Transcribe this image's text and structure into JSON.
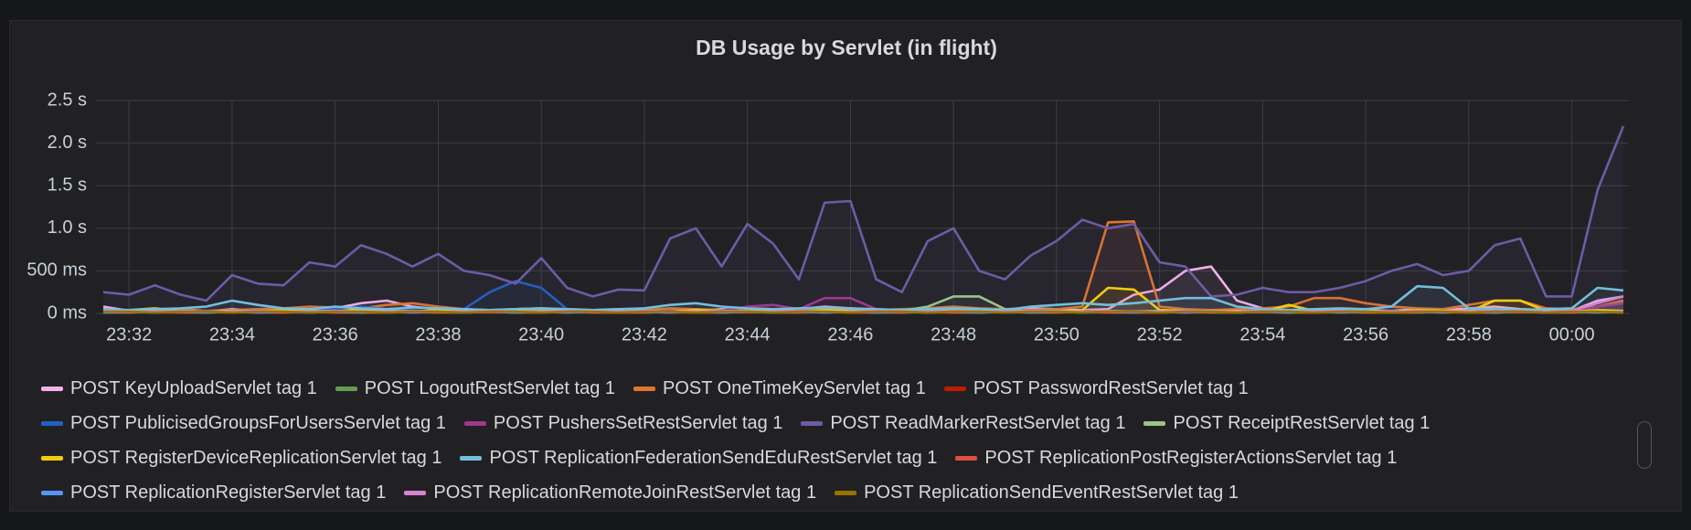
{
  "chart_data": {
    "type": "line",
    "title": "DB Usage by Servlet (in flight)",
    "categories": [
      null,
      "23:32",
      null,
      null,
      null,
      "23:34",
      null,
      null,
      null,
      "23:36",
      null,
      null,
      null,
      "23:38",
      null,
      null,
      null,
      "23:40",
      null,
      null,
      null,
      "23:42",
      null,
      null,
      null,
      "23:44",
      null,
      null,
      null,
      "23:46",
      null,
      null,
      null,
      "23:48",
      null,
      null,
      null,
      "23:50",
      null,
      null,
      null,
      "23:52",
      null,
      null,
      null,
      "23:54",
      null,
      null,
      null,
      "23:56",
      null,
      null,
      null,
      "23:58",
      null,
      null,
      null,
      "00:00",
      null,
      null
    ],
    "ylim": [
      0,
      2.5
    ],
    "yticks": [
      {
        "value": 0,
        "label": "0 ms"
      },
      {
        "value": 0.5,
        "label": "500 ms"
      },
      {
        "value": 1,
        "label": "1.0 s"
      },
      {
        "value": 1.5,
        "label": "1.5 s"
      },
      {
        "value": 2,
        "label": "2.0 s"
      },
      {
        "value": 2.5,
        "label": "2.5 s"
      }
    ],
    "grid": true,
    "legend": "bottom",
    "series": [
      {
        "name": "POST KeyUploadServlet tag 1",
        "color": "#f4b2e8",
        "values": [
          0.08,
          0.03,
          0.02,
          0.03,
          0.02,
          0.05,
          0.03,
          0.02,
          0.04,
          0.06,
          0.12,
          0.15,
          0.08,
          0.05,
          0.04,
          0.03,
          0.05,
          0.06,
          0.04,
          0.03,
          0.02,
          0.03,
          0.04,
          0.03,
          0.05,
          0.04,
          0.03,
          0.05,
          0.08,
          0.06,
          0.04,
          0.03,
          0.05,
          0.04,
          0.03,
          0.05,
          0.06,
          0.05,
          0.04,
          0.05,
          0.22,
          0.28,
          0.5,
          0.55,
          0.15,
          0.06,
          0.04,
          0.03,
          0.05,
          0.04,
          0.03,
          0.05,
          0.04,
          0.06,
          0.08,
          0.05,
          0.04,
          0.03,
          0.15,
          0.2
        ]
      },
      {
        "name": "POST LogoutRestServlet tag 1",
        "color": "#629e51",
        "values": [
          0.02,
          0.01,
          0.02,
          0.03,
          0.01,
          0.02,
          0.02,
          0.01,
          0.03,
          0.02,
          0.02,
          0.01,
          0.02,
          0.03,
          0.01,
          0.02,
          0.02,
          0.01,
          0.03,
          0.02,
          0.02,
          0.01,
          0.02,
          0.03,
          0.01,
          0.02,
          0.02,
          0.01,
          0.03,
          0.02,
          0.02,
          0.01,
          0.02,
          0.03,
          0.01,
          0.02,
          0.02,
          0.01,
          0.03,
          0.02,
          0.02,
          0.01,
          0.02,
          0.03,
          0.01,
          0.02,
          0.02,
          0.01,
          0.03,
          0.02,
          0.02,
          0.01,
          0.02,
          0.03,
          0.01,
          0.02,
          0.02,
          0.01,
          0.03,
          0.02
        ]
      },
      {
        "name": "POST OneTimeKeyServlet tag 1",
        "color": "#e0752d",
        "values": [
          0.05,
          0.03,
          0.04,
          0.05,
          0.03,
          0.04,
          0.05,
          0.06,
          0.08,
          0.07,
          0.06,
          0.1,
          0.12,
          0.08,
          0.05,
          0.04,
          0.05,
          0.06,
          0.05,
          0.04,
          0.05,
          0.04,
          0.06,
          0.05,
          0.04,
          0.06,
          0.05,
          0.04,
          0.06,
          0.05,
          0.04,
          0.05,
          0.06,
          0.08,
          0.06,
          0.05,
          0.04,
          0.05,
          0.08,
          1.07,
          1.08,
          0.08,
          0.05,
          0.04,
          0.05,
          0.06,
          0.08,
          0.18,
          0.18,
          0.12,
          0.08,
          0.06,
          0.05,
          0.1,
          0.15,
          0.15,
          0.06,
          0.05,
          0.08,
          0.15
        ]
      },
      {
        "name": "POST PasswordRestServlet tag 1",
        "color": "#bf1b00",
        "values": [
          0.01,
          0.02,
          0.01,
          0.01,
          0.02,
          0.01,
          0.03,
          0.01,
          0.02,
          0.01,
          0.01,
          0.02,
          0.01,
          0.01,
          0.02,
          0.01,
          0.03,
          0.01,
          0.02,
          0.01,
          0.01,
          0.02,
          0.01,
          0.01,
          0.02,
          0.01,
          0.03,
          0.01,
          0.02,
          0.01,
          0.01,
          0.02,
          0.01,
          0.01,
          0.02,
          0.01,
          0.03,
          0.01,
          0.02,
          0.01,
          0.01,
          0.02,
          0.01,
          0.01,
          0.02,
          0.01,
          0.03,
          0.01,
          0.02,
          0.01,
          0.01,
          0.02,
          0.01,
          0.01,
          0.02,
          0.01,
          0.03,
          0.01,
          0.02,
          0.01
        ]
      },
      {
        "name": "POST PublicisedGroupsForUsersServlet tag 1",
        "color": "#1f60c4",
        "values": [
          0.02,
          0.02,
          0.03,
          0.02,
          0.02,
          0.03,
          0.02,
          0.02,
          0.03,
          0.05,
          0.08,
          0.05,
          0.03,
          0.02,
          0.05,
          0.25,
          0.38,
          0.3,
          0.05,
          0.02,
          0.02,
          0.03,
          0.02,
          0.02,
          0.03,
          0.02,
          0.02,
          0.03,
          0.02,
          0.02,
          0.03,
          0.02,
          0.02,
          0.03,
          0.02,
          0.02,
          0.03,
          0.02,
          0.02,
          0.03,
          0.02,
          0.02,
          0.03,
          0.02,
          0.02,
          0.03,
          0.02,
          0.02,
          0.03,
          0.02,
          0.02,
          0.03,
          0.02,
          0.02,
          0.03,
          0.02,
          0.02,
          0.03,
          0.02,
          0.02
        ]
      },
      {
        "name": "POST PushersSetRestServlet tag 1",
        "color": "#a1378b",
        "values": [
          0.03,
          0.02,
          0.03,
          0.02,
          0.03,
          0.02,
          0.03,
          0.02,
          0.03,
          0.02,
          0.03,
          0.02,
          0.03,
          0.02,
          0.03,
          0.02,
          0.03,
          0.02,
          0.03,
          0.02,
          0.03,
          0.02,
          0.03,
          0.02,
          0.03,
          0.08,
          0.1,
          0.05,
          0.18,
          0.18,
          0.05,
          0.02,
          0.03,
          0.02,
          0.03,
          0.02,
          0.03,
          0.02,
          0.03,
          0.02,
          0.03,
          0.02,
          0.03,
          0.02,
          0.03,
          0.02,
          0.03,
          0.02,
          0.03,
          0.02,
          0.03,
          0.02,
          0.03,
          0.02,
          0.03,
          0.02,
          0.03,
          0.02,
          0.08,
          0.12
        ]
      },
      {
        "name": "POST ReadMarkerRestServlet tag 1",
        "color": "#6e5ba6",
        "values": [
          0.25,
          0.22,
          0.33,
          0.22,
          0.15,
          0.45,
          0.35,
          0.33,
          0.6,
          0.55,
          0.8,
          0.7,
          0.55,
          0.7,
          0.5,
          0.45,
          0.35,
          0.65,
          0.3,
          0.2,
          0.28,
          0.27,
          0.88,
          1.0,
          0.55,
          1.05,
          0.82,
          0.4,
          1.3,
          1.32,
          0.4,
          0.25,
          0.85,
          1.0,
          0.5,
          0.4,
          0.68,
          0.85,
          1.1,
          1.0,
          1.05,
          0.6,
          0.55,
          0.2,
          0.22,
          0.3,
          0.25,
          0.25,
          0.3,
          0.38,
          0.5,
          0.58,
          0.45,
          0.5,
          0.8,
          0.88,
          0.2,
          0.2,
          1.45,
          2.2
        ]
      },
      {
        "name": "POST ReceiptRestServlet tag 1",
        "color": "#9ac48a",
        "values": [
          0.02,
          0.03,
          0.02,
          0.03,
          0.02,
          0.03,
          0.02,
          0.03,
          0.02,
          0.03,
          0.02,
          0.03,
          0.02,
          0.03,
          0.02,
          0.03,
          0.02,
          0.03,
          0.02,
          0.03,
          0.02,
          0.03,
          0.02,
          0.03,
          0.02,
          0.03,
          0.02,
          0.03,
          0.02,
          0.03,
          0.02,
          0.03,
          0.08,
          0.2,
          0.2,
          0.05,
          0.02,
          0.03,
          0.02,
          0.03,
          0.02,
          0.03,
          0.02,
          0.03,
          0.02,
          0.03,
          0.02,
          0.03,
          0.02,
          0.03,
          0.02,
          0.03,
          0.02,
          0.03,
          0.02,
          0.03,
          0.02,
          0.03,
          0.02,
          0.03
        ]
      },
      {
        "name": "POST RegisterDeviceReplicationServlet tag 1",
        "color": "#f2cc0c",
        "values": [
          0.02,
          0.04,
          0.06,
          0.03,
          0.02,
          0.03,
          0.02,
          0.04,
          0.03,
          0.02,
          0.05,
          0.03,
          0.02,
          0.04,
          0.03,
          0.02,
          0.03,
          0.02,
          0.04,
          0.03,
          0.02,
          0.03,
          0.02,
          0.04,
          0.03,
          0.02,
          0.03,
          0.02,
          0.04,
          0.03,
          0.02,
          0.03,
          0.02,
          0.04,
          0.03,
          0.02,
          0.03,
          0.02,
          0.04,
          0.3,
          0.28,
          0.04,
          0.03,
          0.02,
          0.03,
          0.02,
          0.1,
          0.03,
          0.02,
          0.03,
          0.02,
          0.04,
          0.03,
          0.02,
          0.15,
          0.15,
          0.03,
          0.02,
          0.04,
          0.03
        ]
      },
      {
        "name": "POST ReplicationFederationSendEduRestServlet tag 1",
        "color": "#73bfdb",
        "values": [
          0.05,
          0.04,
          0.05,
          0.06,
          0.08,
          0.15,
          0.1,
          0.06,
          0.05,
          0.08,
          0.06,
          0.05,
          0.07,
          0.06,
          0.05,
          0.04,
          0.05,
          0.06,
          0.05,
          0.04,
          0.05,
          0.06,
          0.1,
          0.12,
          0.08,
          0.06,
          0.05,
          0.06,
          0.07,
          0.06,
          0.05,
          0.04,
          0.05,
          0.06,
          0.05,
          0.04,
          0.08,
          0.1,
          0.12,
          0.1,
          0.12,
          0.15,
          0.18,
          0.18,
          0.08,
          0.05,
          0.04,
          0.05,
          0.06,
          0.05,
          0.08,
          0.32,
          0.3,
          0.06,
          0.05,
          0.04,
          0.05,
          0.06,
          0.3,
          0.27
        ]
      },
      {
        "name": "POST ReplicationPostRegisterActionsServlet tag 1",
        "color": "#e24d42",
        "values": [
          0.01,
          0.01,
          0.02,
          0.01,
          0.01,
          0.02,
          0.01,
          0.01,
          0.02,
          0.01,
          0.01,
          0.01,
          0.02,
          0.01,
          0.01,
          0.02,
          0.01,
          0.01,
          0.02,
          0.01,
          0.01,
          0.01,
          0.02,
          0.01,
          0.01,
          0.02,
          0.01,
          0.01,
          0.02,
          0.01,
          0.01,
          0.01,
          0.02,
          0.01,
          0.01,
          0.02,
          0.01,
          0.01,
          0.02,
          0.01,
          0.01,
          0.01,
          0.02,
          0.01,
          0.01,
          0.02,
          0.01,
          0.01,
          0.02,
          0.01,
          0.01,
          0.01,
          0.02,
          0.01,
          0.01,
          0.02,
          0.01,
          0.01,
          0.02,
          0.01
        ]
      },
      {
        "name": "POST ReplicationRegisterServlet tag 1",
        "color": "#5794f2",
        "values": [
          0.01,
          0.02,
          0.01,
          0.02,
          0.01,
          0.02,
          0.01,
          0.02,
          0.01,
          0.02,
          0.01,
          0.02,
          0.01,
          0.02,
          0.01,
          0.02,
          0.01,
          0.02,
          0.01,
          0.02,
          0.01,
          0.02,
          0.01,
          0.02,
          0.01,
          0.02,
          0.01,
          0.02,
          0.01,
          0.02,
          0.01,
          0.02,
          0.01,
          0.02,
          0.01,
          0.02,
          0.01,
          0.02,
          0.01,
          0.02,
          0.01,
          0.02,
          0.01,
          0.02,
          0.01,
          0.02,
          0.01,
          0.02,
          0.01,
          0.02,
          0.01,
          0.02,
          0.01,
          0.02,
          0.01,
          0.02,
          0.01,
          0.02,
          0.01,
          0.02
        ]
      },
      {
        "name": "POST ReplicationRemoteJoinRestServlet tag 1",
        "color": "#d683ce",
        "values": [
          0.03,
          0.02,
          0.02,
          0.03,
          0.02,
          0.02,
          0.03,
          0.02,
          0.02,
          0.03,
          0.02,
          0.02,
          0.03,
          0.02,
          0.02,
          0.03,
          0.02,
          0.02,
          0.03,
          0.02,
          0.02,
          0.03,
          0.02,
          0.02,
          0.03,
          0.02,
          0.02,
          0.03,
          0.02,
          0.02,
          0.03,
          0.02,
          0.02,
          0.03,
          0.02,
          0.02,
          0.03,
          0.02,
          0.02,
          0.03,
          0.02,
          0.02,
          0.03,
          0.02,
          0.02,
          0.03,
          0.02,
          0.02,
          0.03,
          0.02,
          0.02,
          0.03,
          0.02,
          0.02,
          0.03,
          0.02,
          0.02,
          0.03,
          0.12,
          0.2
        ]
      },
      {
        "name": "POST ReplicationSendEventRestServlet tag 1",
        "color": "#967302",
        "values": [
          0.02,
          0.02,
          0.01,
          0.02,
          0.02,
          0.01,
          0.02,
          0.02,
          0.01,
          0.02,
          0.02,
          0.01,
          0.02,
          0.02,
          0.01,
          0.02,
          0.02,
          0.01,
          0.02,
          0.02,
          0.01,
          0.02,
          0.02,
          0.01,
          0.02,
          0.02,
          0.01,
          0.02,
          0.02,
          0.01,
          0.02,
          0.02,
          0.01,
          0.02,
          0.02,
          0.01,
          0.02,
          0.02,
          0.01,
          0.02,
          0.02,
          0.01,
          0.02,
          0.02,
          0.01,
          0.02,
          0.02,
          0.01,
          0.02,
          0.02,
          0.01,
          0.02,
          0.02,
          0.01,
          0.02,
          0.02,
          0.01,
          0.02,
          0.02,
          0.01
        ]
      }
    ]
  }
}
